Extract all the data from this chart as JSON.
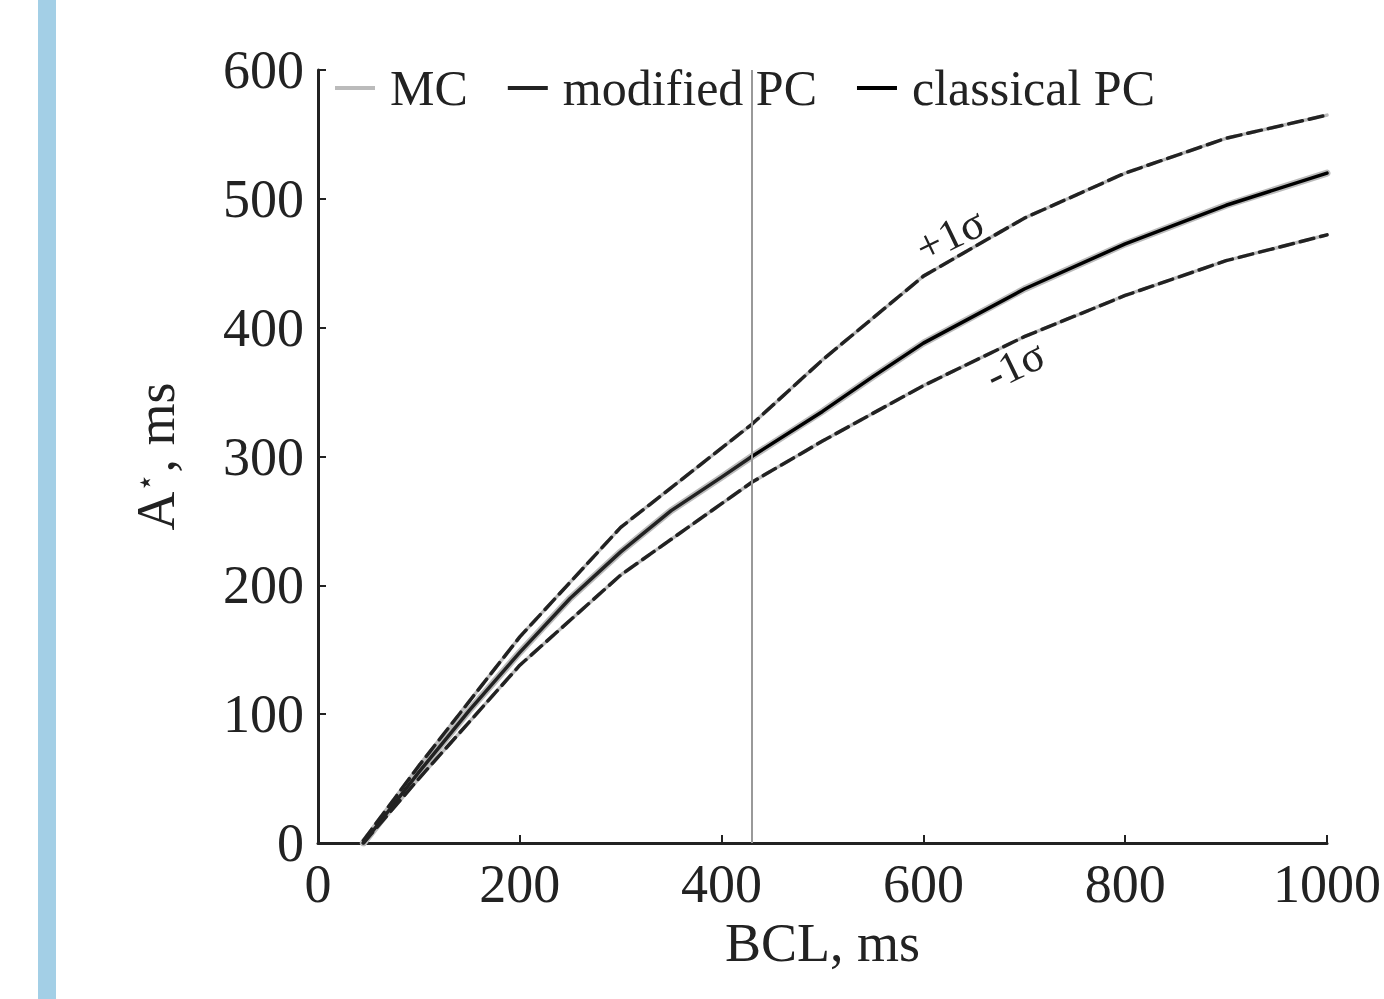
{
  "chart_data": {
    "type": "line",
    "xlabel": "BCL, ms",
    "ylabel": "A$^{⋆}$, ms",
    "xlim": [
      0,
      1000
    ],
    "xticks": [
      0,
      200,
      400,
      600,
      800,
      1000
    ],
    "ylim": [
      0,
      600
    ],
    "yticks": [
      0,
      100,
      200,
      300,
      400,
      500,
      600
    ],
    "grid": false,
    "legend": "top",
    "marker": "none",
    "series": [
      {
        "name": "MC",
        "color": "#bbbbbb",
        "line_style": "solid",
        "x": [
          45,
          100,
          150,
          200,
          250,
          300,
          350,
          400,
          430,
          500,
          550,
          600,
          700,
          800,
          900,
          1000
        ],
        "values": [
          0,
          55,
          103,
          148,
          190,
          226,
          258,
          284,
          300,
          335,
          362,
          388,
          430,
          465,
          495,
          520
        ]
      },
      {
        "color": "#bbbbbb",
        "line_style": "dashed",
        "x": [
          45,
          100,
          200,
          300,
          430,
          500,
          600,
          700,
          800,
          900,
          1000
        ],
        "values": [
          2,
          60,
          160,
          245,
          325,
          375,
          440,
          485,
          520,
          547,
          565
        ]
      },
      {
        "color": "#bbbbbb",
        "line_style": "dashed",
        "x": [
          45,
          100,
          200,
          300,
          430,
          500,
          600,
          700,
          800,
          900,
          1000
        ],
        "values": [
          0,
          50,
          138,
          208,
          280,
          312,
          355,
          393,
          425,
          452,
          472
        ]
      },
      {
        "name": "modified PC",
        "color": "#222222",
        "line_style": "solid",
        "x": [
          45,
          100,
          150,
          200,
          250,
          300,
          350,
          400,
          430
        ],
        "values": [
          0,
          55,
          103,
          148,
          190,
          226,
          258,
          284,
          300
        ]
      },
      {
        "name": "classical PC",
        "color": "#000000",
        "line_style": "solid",
        "x": [
          430,
          500,
          550,
          600,
          700,
          800,
          900,
          1000
        ],
        "values": [
          300,
          335,
          362,
          388,
          430,
          465,
          495,
          520
        ]
      },
      {
        "color": "#222222",
        "line_style": "dashed",
        "x": [
          45,
          100,
          200,
          300,
          430,
          500,
          600,
          700,
          800,
          900,
          1000
        ],
        "values": [
          2,
          60,
          160,
          245,
          325,
          375,
          440,
          485,
          520,
          547,
          565
        ]
      },
      {
        "color": "#222222",
        "line_style": "dashed",
        "x": [
          45,
          100,
          200,
          300,
          430,
          500,
          600,
          700,
          800,
          900,
          1000
        ],
        "values": [
          0,
          50,
          138,
          208,
          280,
          312,
          355,
          393,
          425,
          452,
          472
        ]
      }
    ],
    "ref_lines": [
      {
        "axis": "x",
        "value": 430,
        "color": "#999999"
      }
    ],
    "annotations": [
      "+1σ",
      "-1σ"
    ]
  }
}
